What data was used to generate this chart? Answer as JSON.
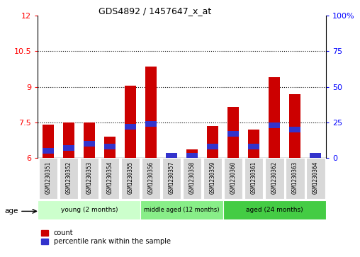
{
  "title": "GDS4892 / 1457647_x_at",
  "samples": [
    "GSM1230351",
    "GSM1230352",
    "GSM1230353",
    "GSM1230354",
    "GSM1230355",
    "GSM1230356",
    "GSM1230357",
    "GSM1230358",
    "GSM1230359",
    "GSM1230360",
    "GSM1230361",
    "GSM1230362",
    "GSM1230363",
    "GSM1230364"
  ],
  "count_values": [
    7.4,
    7.5,
    7.5,
    6.9,
    9.05,
    9.85,
    6.2,
    6.35,
    7.35,
    8.15,
    7.2,
    9.4,
    8.7,
    6.2
  ],
  "percentile_values": [
    5,
    7,
    10,
    8,
    22,
    24,
    2,
    2,
    8,
    17,
    8,
    23,
    20,
    2
  ],
  "y_min": 6,
  "y_max": 12,
  "y_ticks_left": [
    6,
    7.5,
    9,
    10.5,
    12
  ],
  "y_ticks_right": [
    0,
    25,
    50,
    75,
    100
  ],
  "groups": [
    {
      "label": "young (2 months)",
      "start": 0,
      "end": 5,
      "color": "#ccffcc"
    },
    {
      "label": "middle aged (12 months)",
      "start": 5,
      "end": 9,
      "color": "#88ee88"
    },
    {
      "label": "aged (24 months)",
      "start": 9,
      "end": 14,
      "color": "#44cc44"
    }
  ],
  "bar_color_red": "#cc0000",
  "bar_color_blue": "#3333cc",
  "bar_width": 0.55,
  "legend_count_label": "count",
  "legend_pct_label": "percentile rank within the sample",
  "age_label": "age"
}
